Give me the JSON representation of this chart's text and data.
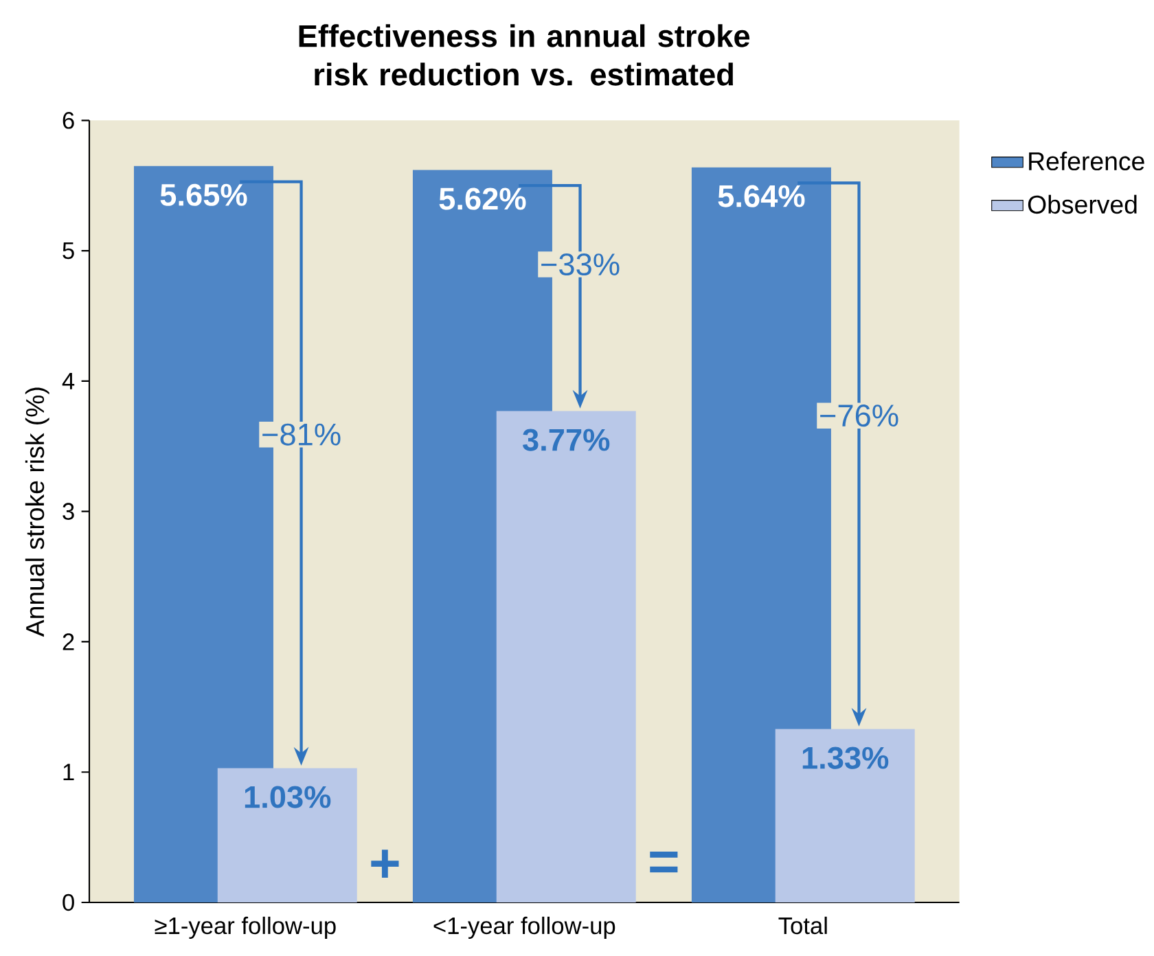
{
  "chart_data": {
    "type": "bar",
    "title": "Effectiveness in annual stroke risk reduction vs. estimated",
    "ylabel": "Annual stroke risk (%)",
    "categories": [
      "≥1-year follow-up",
      "<1-year follow-up",
      "Total"
    ],
    "series": [
      {
        "name": "Reference",
        "color": "#4f86c6",
        "values": [
          5.65,
          5.62,
          5.64
        ],
        "value_labels": [
          "5.65%",
          "5.62%",
          "5.64%"
        ]
      },
      {
        "name": "Observed",
        "color": "#b9c8e8",
        "values": [
          1.03,
          3.77,
          1.33
        ],
        "value_labels": [
          "1.03%",
          "3.77%",
          "1.33%"
        ]
      }
    ],
    "ylim": [
      0,
      6
    ],
    "yticks": [
      0,
      1,
      2,
      3,
      4,
      5,
      6
    ],
    "grid": false,
    "legend": "top right",
    "annotations": [
      "−81%",
      "−33%",
      "−76%",
      "+",
      "="
    ]
  }
}
